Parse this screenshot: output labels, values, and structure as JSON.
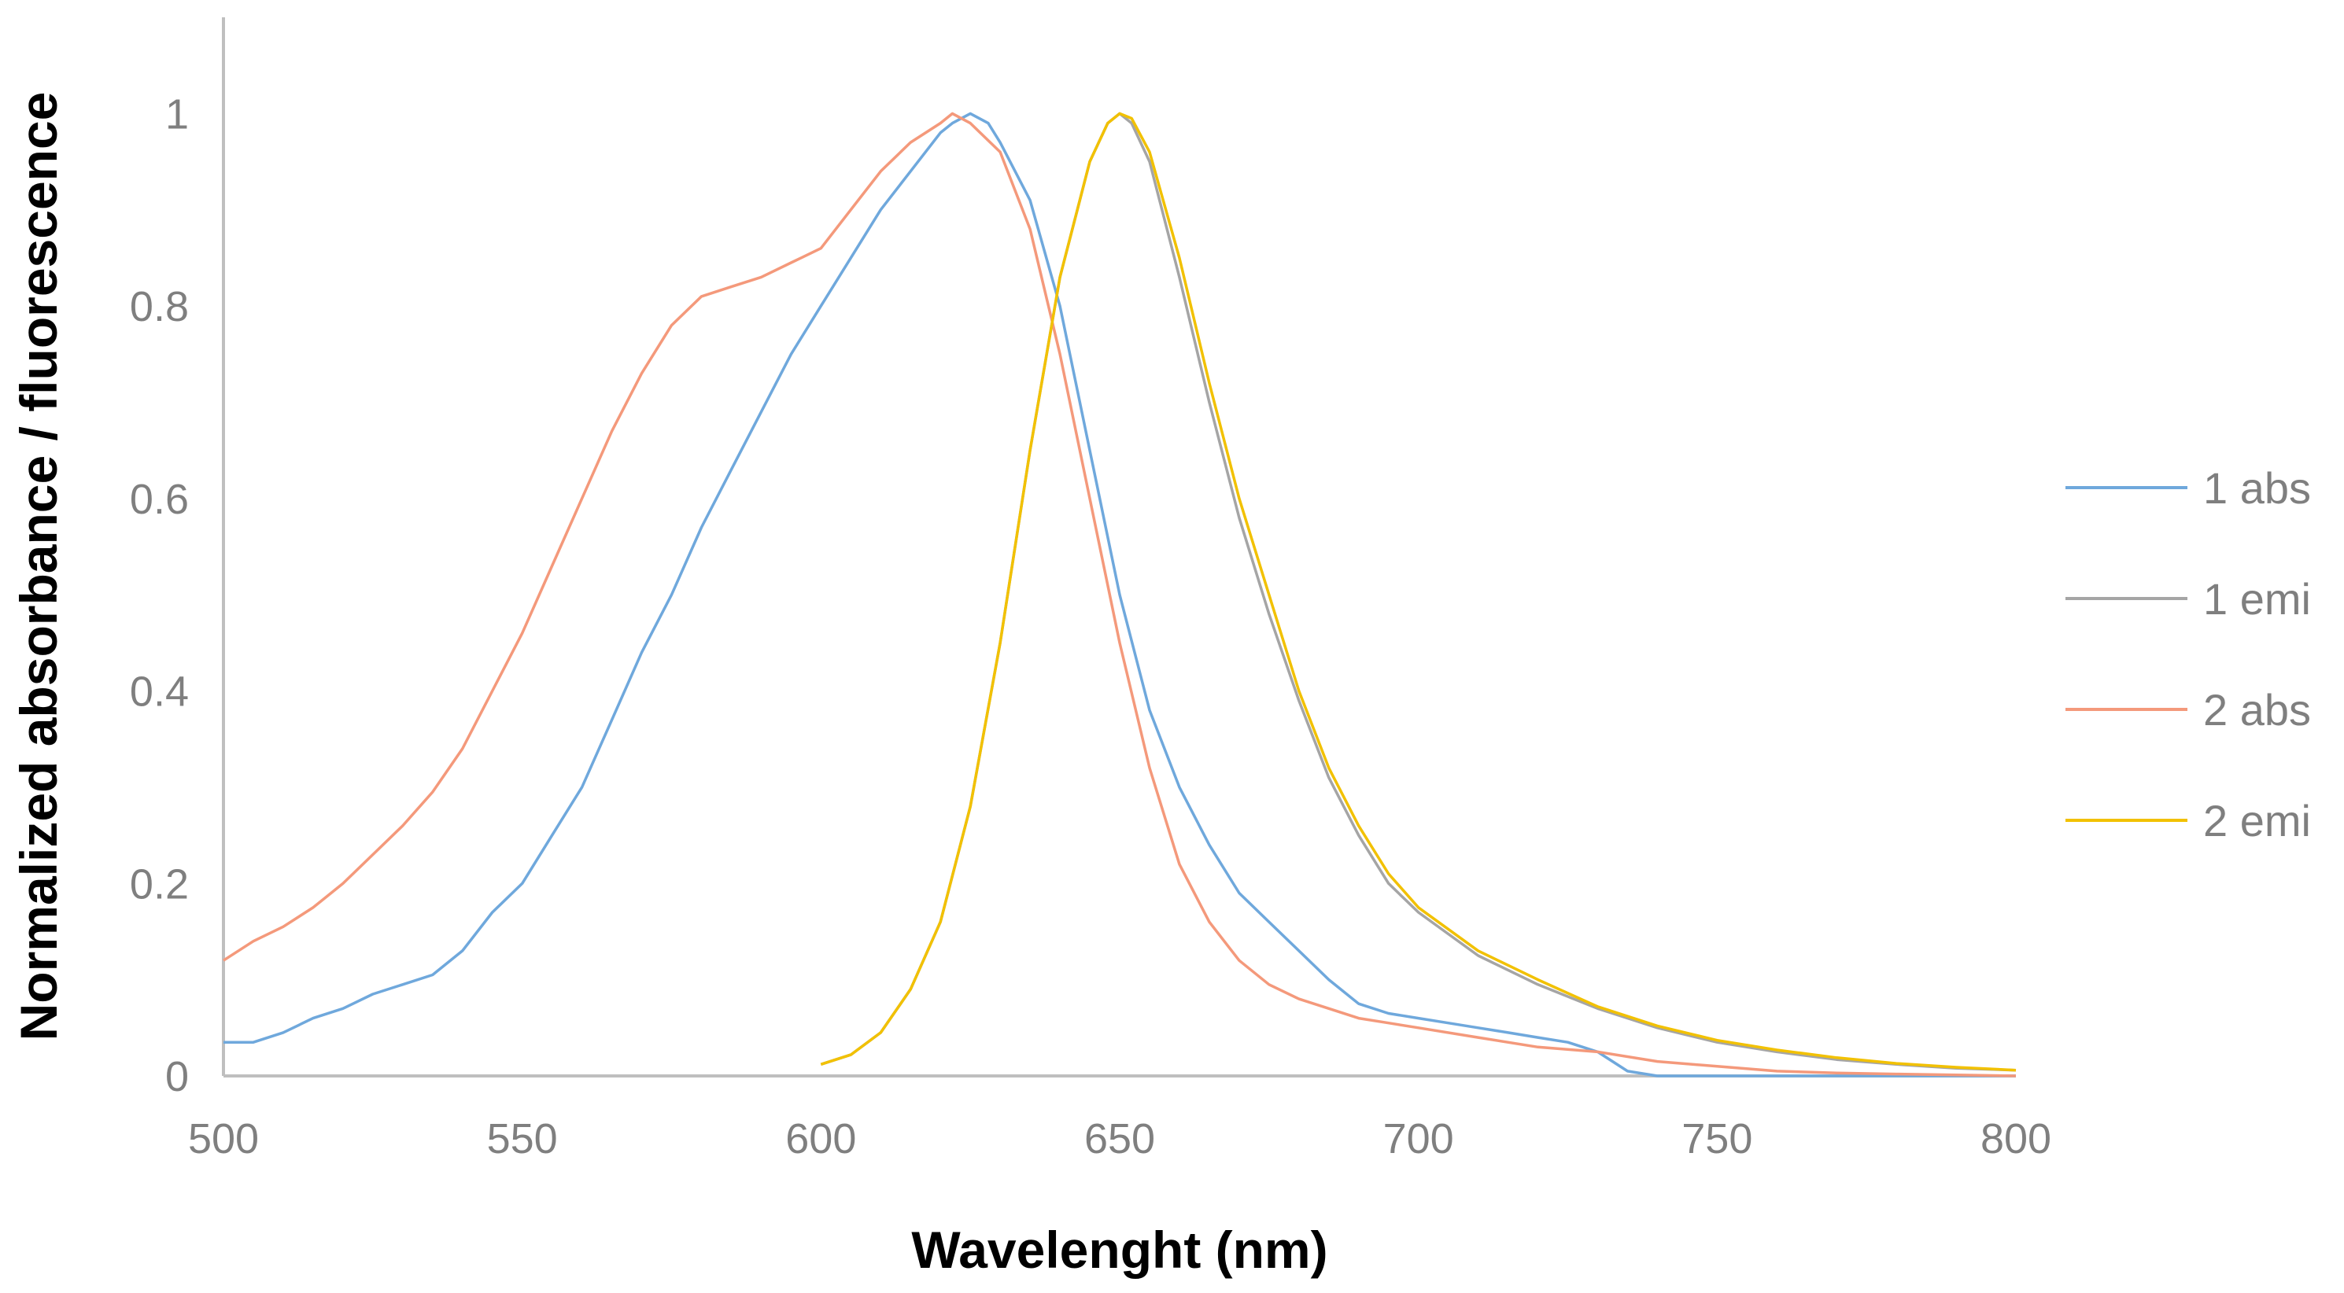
{
  "chart_data": {
    "type": "line",
    "title": "",
    "xlabel": "Wavelenght (nm)",
    "ylabel": "Normalized absorbance / fluorescence",
    "xlim": [
      500,
      800
    ],
    "ylim": [
      0,
      1.1
    ],
    "xticks": [
      500,
      550,
      600,
      650,
      700,
      750,
      800
    ],
    "xtick_labels": [
      "500",
      "550",
      "600",
      "650",
      "700",
      "750",
      "800"
    ],
    "yticks": [
      0,
      0.2,
      0.4,
      0.6,
      0.8,
      1
    ],
    "ytick_labels": [
      "0",
      "0.2",
      "0.4",
      "0.6",
      "0.8",
      "1"
    ],
    "grid": false,
    "legend_position": "right",
    "series": [
      {
        "name": "1 abs",
        "color": "#6fa8dc",
        "x": [
          500,
          505,
          510,
          515,
          520,
          525,
          530,
          535,
          540,
          545,
          550,
          555,
          560,
          565,
          570,
          575,
          580,
          585,
          590,
          595,
          600,
          605,
          610,
          615,
          620,
          622,
          625,
          628,
          630,
          635,
          640,
          645,
          650,
          655,
          660,
          665,
          670,
          675,
          680,
          685,
          690,
          695,
          700,
          705,
          710,
          715,
          720,
          725,
          730,
          735,
          740,
          745,
          750,
          760,
          770,
          780,
          790,
          800
        ],
        "y": [
          0.035,
          0.035,
          0.045,
          0.06,
          0.07,
          0.085,
          0.095,
          0.105,
          0.13,
          0.17,
          0.2,
          0.25,
          0.3,
          0.37,
          0.44,
          0.5,
          0.57,
          0.63,
          0.69,
          0.75,
          0.8,
          0.85,
          0.9,
          0.94,
          0.98,
          0.99,
          1.0,
          0.99,
          0.97,
          0.91,
          0.8,
          0.65,
          0.5,
          0.38,
          0.3,
          0.24,
          0.19,
          0.16,
          0.13,
          0.1,
          0.075,
          0.065,
          0.06,
          0.055,
          0.05,
          0.045,
          0.04,
          0.035,
          0.025,
          0.005,
          0.0,
          0.0,
          0.0,
          0.0,
          0.0,
          0.0,
          0.0,
          0.0
        ]
      },
      {
        "name": "1 emi",
        "color": "#a5a5a5",
        "x": [
          600,
          605,
          610,
          615,
          620,
          625,
          630,
          635,
          640,
          645,
          648,
          650,
          652,
          655,
          660,
          665,
          670,
          675,
          680,
          685,
          690,
          695,
          700,
          710,
          720,
          730,
          740,
          750,
          760,
          770,
          780,
          790,
          800
        ],
        "y": [
          0.012,
          0.022,
          0.045,
          0.09,
          0.16,
          0.28,
          0.45,
          0.65,
          0.83,
          0.95,
          0.99,
          1.0,
          0.99,
          0.95,
          0.83,
          0.7,
          0.58,
          0.48,
          0.39,
          0.31,
          0.25,
          0.2,
          0.17,
          0.125,
          0.095,
          0.07,
          0.05,
          0.035,
          0.025,
          0.017,
          0.012,
          0.008,
          0.006
        ]
      },
      {
        "name": "2 abs",
        "color": "#f4997b",
        "x": [
          500,
          505,
          510,
          515,
          520,
          525,
          530,
          535,
          540,
          545,
          550,
          555,
          560,
          565,
          570,
          575,
          580,
          585,
          590,
          595,
          600,
          605,
          610,
          615,
          620,
          622,
          625,
          630,
          635,
          640,
          645,
          650,
          655,
          660,
          665,
          670,
          675,
          680,
          685,
          690,
          695,
          700,
          710,
          720,
          730,
          740,
          750,
          760,
          770,
          780,
          790,
          800
        ],
        "y": [
          0.12,
          0.14,
          0.155,
          0.175,
          0.2,
          0.23,
          0.26,
          0.295,
          0.34,
          0.4,
          0.46,
          0.53,
          0.6,
          0.67,
          0.73,
          0.78,
          0.81,
          0.82,
          0.83,
          0.845,
          0.86,
          0.9,
          0.94,
          0.97,
          0.99,
          1.0,
          0.99,
          0.96,
          0.88,
          0.75,
          0.6,
          0.45,
          0.32,
          0.22,
          0.16,
          0.12,
          0.095,
          0.08,
          0.07,
          0.06,
          0.055,
          0.05,
          0.04,
          0.03,
          0.025,
          0.015,
          0.01,
          0.005,
          0.003,
          0.002,
          0.001,
          0.0
        ]
      },
      {
        "name": "2 emi",
        "color": "#f2c100",
        "x": [
          600,
          605,
          610,
          615,
          620,
          625,
          630,
          635,
          640,
          645,
          648,
          650,
          652,
          655,
          660,
          665,
          670,
          675,
          680,
          685,
          690,
          695,
          700,
          710,
          720,
          730,
          740,
          750,
          760,
          770,
          780,
          790,
          800
        ],
        "y": [
          0.012,
          0.022,
          0.045,
          0.09,
          0.16,
          0.28,
          0.45,
          0.65,
          0.83,
          0.95,
          0.99,
          1.0,
          0.995,
          0.96,
          0.85,
          0.72,
          0.6,
          0.5,
          0.4,
          0.32,
          0.26,
          0.21,
          0.175,
          0.13,
          0.1,
          0.072,
          0.052,
          0.037,
          0.027,
          0.019,
          0.013,
          0.009,
          0.006
        ]
      }
    ]
  }
}
